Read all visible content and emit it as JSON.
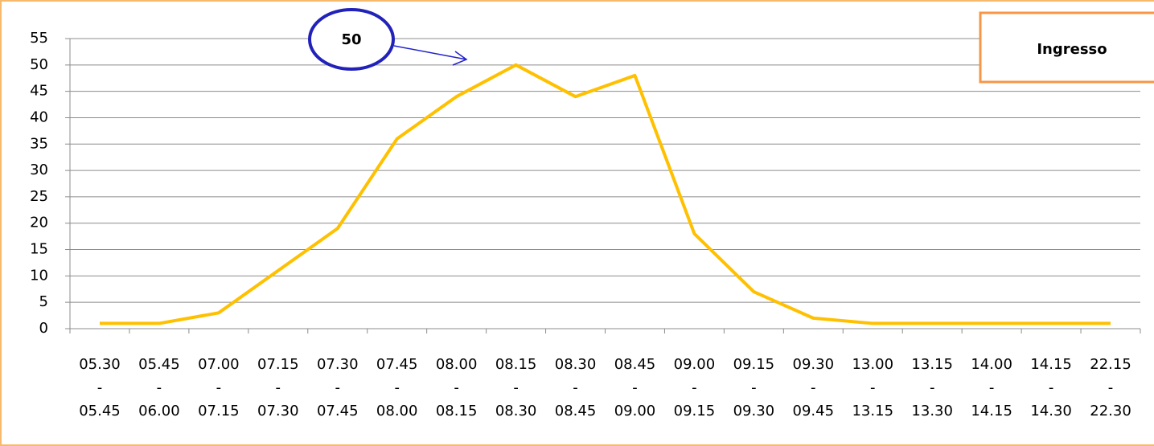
{
  "chart_data": {
    "type": "line",
    "categories": [
      "05.30 - 05.45",
      "05.45 - 06.00",
      "07.00 - 07.15",
      "07.15 - 07.30",
      "07.30 - 07.45",
      "07.45 - 08.00",
      "08.00 - 08.15",
      "08.15 - 08.30",
      "08.30 - 08.45",
      "08.45 - 09.00",
      "09.00 - 09.15",
      "09.15 - 09.30",
      "09.30 - 09.45",
      "13.00 - 13.15",
      "13.15 - 13.30",
      "14.00 - 14.15",
      "14.15 - 14.30",
      "22.15 - 22.30"
    ],
    "series": [
      {
        "name": "Ingresso",
        "color": "#ffc000",
        "values": [
          1,
          1,
          3,
          11,
          19,
          36,
          44,
          50,
          44,
          48,
          18,
          7,
          2,
          1,
          1,
          1,
          1,
          1
        ]
      }
    ],
    "ylim": [
      0,
      55
    ],
    "yticks": [
      0,
      5,
      10,
      15,
      20,
      25,
      30,
      35,
      40,
      45,
      50,
      55
    ],
    "grid": true,
    "legend": "top-right",
    "annotation": "50"
  }
}
